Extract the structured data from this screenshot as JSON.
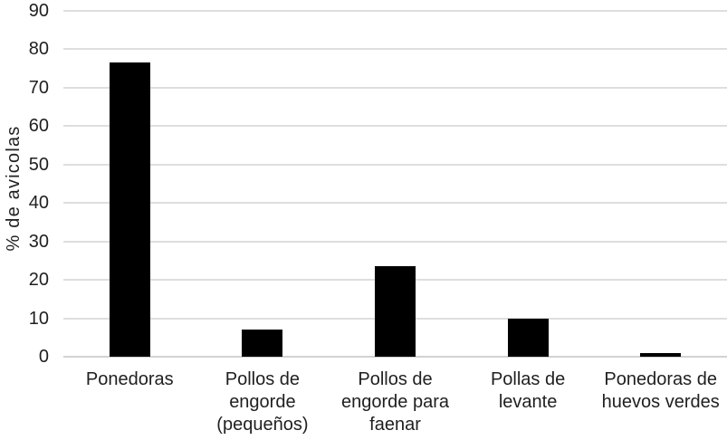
{
  "chart_data": {
    "type": "bar",
    "title": "",
    "ylabel": "% de avicolas",
    "xlabel": "",
    "categories": [
      "Ponedoras",
      "Pollos de engorde (pequeños)",
      "Pollos de engorde para faenar",
      "Pollas de levante",
      "Ponedoras de huevos verdes"
    ],
    "category_lines": [
      [
        "Ponedoras"
      ],
      [
        "Pollos de",
        "engorde",
        "(pequeños)"
      ],
      [
        "Pollos de",
        "engorde para",
        "faenar"
      ],
      [
        "Pollas de",
        "levante"
      ],
      [
        "Ponedoras de",
        "huevos verdes"
      ]
    ],
    "values": [
      76.5,
      7,
      23.5,
      10,
      1
    ],
    "ylim": [
      0,
      90
    ],
    "ytick_step": 10,
    "yticks": [
      "0",
      "10",
      "20",
      "30",
      "40",
      "50",
      "60",
      "70",
      "80",
      "90"
    ],
    "grid": "horizontal",
    "bar_color": "#000000",
    "gridline_color": "#dedede",
    "text_color": "#1f1f1f",
    "legend": "none"
  }
}
